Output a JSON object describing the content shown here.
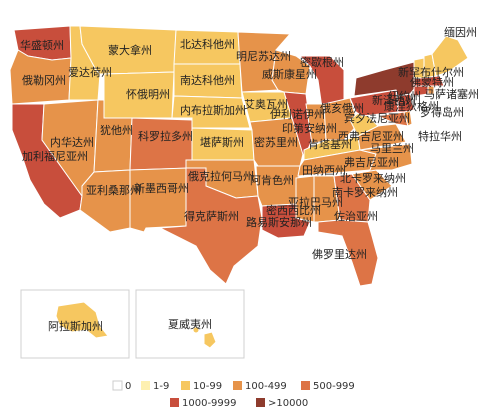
{
  "colors": {
    "c0": "#ffffff",
    "c1_9": "#fef0b0",
    "c10_99": "#f6c760",
    "c100_499": "#e6934a",
    "c500_999": "#dd7446",
    "c1000_9999": "#c84e3c",
    "c10000": "#8e3b2d",
    "border": "#ffffff"
  },
  "states": [
    {
      "name": "华盛顿州",
      "level": "c1000_9999"
    },
    {
      "name": "俄勒冈州",
      "level": "c100_499"
    },
    {
      "name": "加利福尼亚州",
      "level": "c1000_9999"
    },
    {
      "name": "爱达荷州",
      "level": "c10_99"
    },
    {
      "name": "内华达州",
      "level": "c100_499"
    },
    {
      "name": "蒙大拿州",
      "level": "c10_99"
    },
    {
      "name": "怀俄明州",
      "level": "c10_99"
    },
    {
      "name": "犹他州",
      "level": "c100_499"
    },
    {
      "name": "亚利桑那州",
      "level": "c100_499"
    },
    {
      "name": "科罗拉多州",
      "level": "c500_999"
    },
    {
      "name": "新墨西哥州",
      "level": "c100_499"
    },
    {
      "name": "北达科他州",
      "level": "c10_99"
    },
    {
      "name": "南达科他州",
      "level": "c10_99"
    },
    {
      "name": "内布拉斯加州",
      "level": "c10_99"
    },
    {
      "name": "堪萨斯州",
      "level": "c10_99"
    },
    {
      "name": "俄克拉何马州",
      "level": "c100_499"
    },
    {
      "name": "得克萨斯州",
      "level": "c500_999"
    },
    {
      "name": "明尼苏达州",
      "level": "c100_499"
    },
    {
      "name": "艾奥瓦州",
      "level": "c10_99"
    },
    {
      "name": "密苏里州",
      "level": "c100_499"
    },
    {
      "name": "阿肯色州",
      "level": "c100_499"
    },
    {
      "name": "路易斯安那州",
      "level": "c1000_9999"
    },
    {
      "name": "威斯康星州",
      "level": "c100_499"
    },
    {
      "name": "伊利诺伊州",
      "level": "c1000_9999"
    },
    {
      "name": "密歇根州",
      "level": "c1000_9999"
    },
    {
      "name": "印第安纳州",
      "level": "c100_499"
    },
    {
      "name": "俄亥俄州",
      "level": "c100_499"
    },
    {
      "name": "肯塔基州",
      "level": "c10_99"
    },
    {
      "name": "田纳西州",
      "level": "c100_499"
    },
    {
      "name": "密西西比州",
      "level": "c100_499"
    },
    {
      "name": "亚拉巴马州",
      "level": "c100_499"
    },
    {
      "name": "佐治亚州",
      "level": "c500_999"
    },
    {
      "name": "佛罗里达州",
      "level": "c500_999"
    },
    {
      "name": "南卡罗来纳州",
      "level": "c100_499"
    },
    {
      "name": "北卡罗来纳州",
      "level": "c100_499"
    },
    {
      "name": "弗吉尼亚州",
      "level": "c100_499"
    },
    {
      "name": "西弗吉尼亚州",
      "level": "c10_99"
    },
    {
      "name": "宾夕法尼亚州",
      "level": "c1000_9999"
    },
    {
      "name": "纽约州",
      "level": "c10000"
    },
    {
      "name": "佛蒙特州",
      "level": "c10_99"
    },
    {
      "name": "新罕布什尔州",
      "level": "c10_99"
    },
    {
      "name": "缅因州",
      "level": "c10_99"
    },
    {
      "name": "马萨诸塞州",
      "level": "c1000_9999"
    },
    {
      "name": "罗得岛州",
      "level": "c100_499"
    },
    {
      "name": "康涅狄格州",
      "level": "c1000_9999"
    },
    {
      "name": "新泽西州",
      "level": "c1000_9999"
    },
    {
      "name": "特拉华州",
      "level": "c100_499"
    },
    {
      "name": "马里兰州",
      "level": "c500_999"
    },
    {
      "name": "阿拉斯加州",
      "level": "c10_99"
    },
    {
      "name": "夏威夷州",
      "level": "c10_99"
    }
  ],
  "legend": [
    {
      "label": "0",
      "level": "c0"
    },
    {
      "label": "1-9",
      "level": "c1_9"
    },
    {
      "label": "10-99",
      "level": "c10_99"
    },
    {
      "label": "100-499",
      "level": "c100_499"
    },
    {
      "label": "500-999",
      "level": "c500_999"
    },
    {
      "label": "1000-9999",
      "level": "c1000_9999"
    },
    {
      "label": ">10000",
      "level": "c10000"
    }
  ]
}
